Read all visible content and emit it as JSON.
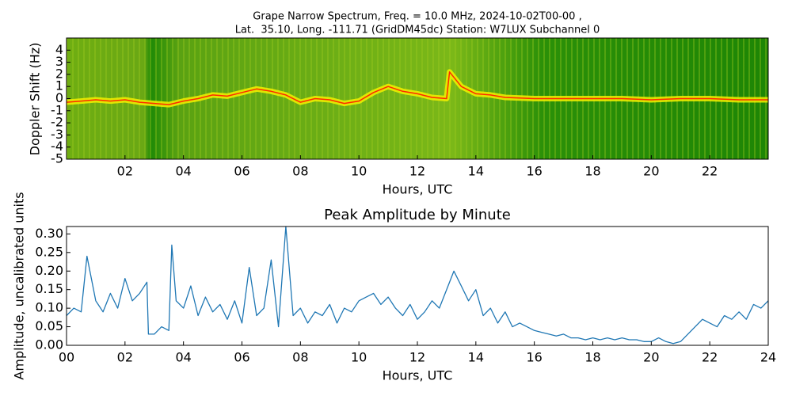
{
  "chart_data": [
    {
      "type": "spectrogram",
      "title": [
        "Grape Narrow Spectrum, Freq. = 10.0 MHz, 2024-10-02T00-00 ,",
        "Lat.  35.10, Long. -111.71 (GridDM45dc) Station: W7LUX Subchannel 0"
      ],
      "xlabel": "Hours, UTC",
      "ylabel": "Doppler Shift (Hz)",
      "xlim": [
        0,
        24
      ],
      "ylim": [
        -5,
        5
      ],
      "xticks": [
        {
          "value": 2,
          "label": "02"
        },
        {
          "value": 4,
          "label": "04"
        },
        {
          "value": 6,
          "label": "06"
        },
        {
          "value": 8,
          "label": "08"
        },
        {
          "value": 10,
          "label": "10"
        },
        {
          "value": 12,
          "label": "12"
        },
        {
          "value": 14,
          "label": "14"
        },
        {
          "value": 16,
          "label": "16"
        },
        {
          "value": 18,
          "label": "18"
        },
        {
          "value": 20,
          "label": "20"
        },
        {
          "value": 22,
          "label": "22"
        }
      ],
      "yticks": [
        4,
        3,
        2,
        1,
        0,
        -1,
        -2,
        -3,
        -4,
        -5
      ],
      "series": [
        {
          "color": "#ff2a00",
          "x": [
            0,
            0.5,
            1,
            1.5,
            2,
            2.5,
            3,
            3.5,
            4,
            4.5,
            5,
            5.5,
            6,
            6.5,
            7,
            7.5,
            8,
            8.5,
            9,
            9.5,
            10,
            10.5,
            11,
            11.5,
            12,
            12.5,
            13,
            13.1,
            13.5,
            14,
            14.5,
            15,
            16,
            17,
            18,
            19,
            20,
            21,
            22,
            23,
            24
          ],
          "values": [
            -0.3,
            -0.2,
            -0.1,
            -0.2,
            -0.1,
            -0.3,
            -0.4,
            -0.5,
            -0.2,
            0,
            0.3,
            0.2,
            0.5,
            0.8,
            0.6,
            0.3,
            -0.3,
            0,
            -0.1,
            -0.4,
            -0.2,
            0.5,
            1.0,
            0.6,
            0.4,
            0.1,
            0,
            2.2,
            1.0,
            0.4,
            0.3,
            0.1,
            0,
            0,
            0,
            0,
            -0.1,
            0,
            0,
            -0.1,
            -0.1
          ]
        }
      ]
    },
    {
      "type": "line",
      "title": "Peak Amplitude by Minute",
      "xlabel": "Hours, UTC",
      "ylabel": "Amplitude, uncalibrated units",
      "xlim": [
        0,
        24
      ],
      "ylim": [
        0,
        0.32
      ],
      "xticks": [
        {
          "value": 0,
          "label": "00"
        },
        {
          "value": 2,
          "label": "02"
        },
        {
          "value": 4,
          "label": "04"
        },
        {
          "value": 6,
          "label": "06"
        },
        {
          "value": 8,
          "label": "08"
        },
        {
          "value": 10,
          "label": "10"
        },
        {
          "value": 12,
          "label": "12"
        },
        {
          "value": 14,
          "label": "14"
        },
        {
          "value": 16,
          "label": "16"
        },
        {
          "value": 18,
          "label": "18"
        },
        {
          "value": 20,
          "label": "20"
        },
        {
          "value": 22,
          "label": "22"
        },
        24
      ],
      "yticks": [
        {
          "value": 0,
          "label": "0.00"
        },
        {
          "value": 0.05,
          "label": "0.05"
        },
        {
          "value": 0.1,
          "label": "0.10"
        },
        {
          "value": 0.15,
          "label": "0.15"
        },
        {
          "value": 0.2,
          "label": "0.20"
        },
        {
          "value": 0.25,
          "label": "0.25"
        },
        {
          "value": 0.3,
          "label": "0.30"
        }
      ],
      "series": [
        {
          "color": "#1f77b4",
          "x": [
            0,
            0.25,
            0.5,
            0.7,
            1,
            1.25,
            1.5,
            1.75,
            2,
            2.25,
            2.5,
            2.75,
            2.8,
            3,
            3.25,
            3.5,
            3.6,
            3.75,
            4,
            4.25,
            4.5,
            4.75,
            5,
            5.25,
            5.5,
            5.75,
            6,
            6.25,
            6.5,
            6.75,
            7,
            7.25,
            7.5,
            7.75,
            8,
            8.25,
            8.5,
            8.75,
            9,
            9.25,
            9.5,
            9.75,
            10,
            10.25,
            10.5,
            10.75,
            11,
            11.25,
            11.5,
            11.75,
            12,
            12.25,
            12.5,
            12.75,
            13,
            13.25,
            13.5,
            13.75,
            14,
            14.25,
            14.5,
            14.75,
            15,
            15.25,
            15.5,
            15.75,
            16,
            16.25,
            16.5,
            16.75,
            17,
            17.25,
            17.5,
            17.75,
            18,
            18.25,
            18.5,
            18.75,
            19,
            19.25,
            19.5,
            19.75,
            20,
            20.25,
            20.5,
            20.75,
            21,
            21.25,
            21.5,
            21.75,
            22,
            22.25,
            22.5,
            22.75,
            23,
            23.25,
            23.5,
            23.75,
            24
          ],
          "values": [
            0.08,
            0.1,
            0.09,
            0.24,
            0.12,
            0.09,
            0.14,
            0.1,
            0.18,
            0.12,
            0.14,
            0.17,
            0.03,
            0.03,
            0.05,
            0.04,
            0.27,
            0.12,
            0.1,
            0.16,
            0.08,
            0.13,
            0.09,
            0.11,
            0.07,
            0.12,
            0.06,
            0.21,
            0.08,
            0.1,
            0.23,
            0.05,
            0.32,
            0.08,
            0.1,
            0.06,
            0.09,
            0.08,
            0.11,
            0.06,
            0.1,
            0.09,
            0.12,
            0.13,
            0.14,
            0.11,
            0.13,
            0.1,
            0.08,
            0.11,
            0.07,
            0.09,
            0.12,
            0.1,
            0.15,
            0.2,
            0.16,
            0.12,
            0.15,
            0.08,
            0.1,
            0.06,
            0.09,
            0.05,
            0.06,
            0.05,
            0.04,
            0.035,
            0.03,
            0.025,
            0.03,
            0.02,
            0.02,
            0.015,
            0.02,
            0.015,
            0.02,
            0.015,
            0.02,
            0.015,
            0.015,
            0.01,
            0.01,
            0.02,
            0.01,
            0.005,
            0.01,
            0.03,
            0.05,
            0.07,
            0.06,
            0.05,
            0.08,
            0.07,
            0.09,
            0.07,
            0.11,
            0.1,
            0.12
          ]
        }
      ]
    }
  ]
}
